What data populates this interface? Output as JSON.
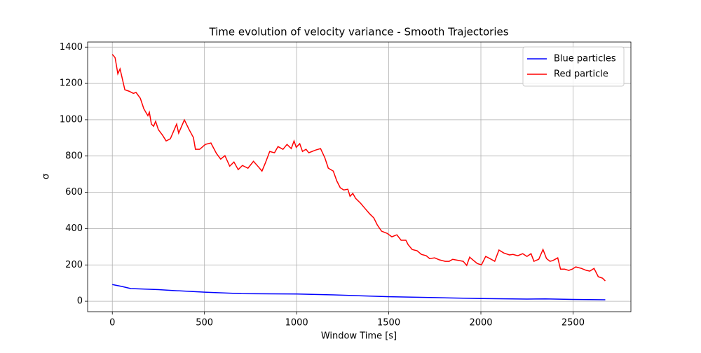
{
  "chart_data": {
    "type": "line",
    "title": "Time evolution of velocity variance - Smooth Trajectories",
    "xlabel": "Window Time [s]",
    "ylabel": "σ",
    "xlim": [
      -134,
      2814
    ],
    "ylim": [
      -57.5,
      1428
    ],
    "xticks": [
      0,
      500,
      1000,
      1500,
      2000,
      2500
    ],
    "yticks": [
      0,
      200,
      400,
      600,
      800,
      1000,
      1200,
      1400
    ],
    "grid": true,
    "legend": "upper right",
    "series": [
      {
        "name": "Blue particles",
        "color": "#0000ff",
        "x": [
          0,
          50,
          100,
          250,
          350,
          500,
          700,
          1000,
          1200,
          1500,
          1750,
          2000,
          2250,
          2350,
          2500,
          2675
        ],
        "values": [
          92,
          82,
          70,
          64,
          58,
          50,
          42,
          40,
          35,
          25,
          20,
          15,
          12,
          13,
          10,
          8
        ]
      },
      {
        "name": "Red particle",
        "color": "#ff0000",
        "x": [
          0,
          15,
          30,
          42,
          68,
          91,
          114,
          129,
          152,
          171,
          193,
          201,
          212,
          224,
          235,
          250,
          273,
          292,
          315,
          349,
          360,
          391,
          417,
          440,
          451,
          474,
          505,
          535,
          565,
          588,
          611,
          637,
          660,
          683,
          706,
          736,
          766,
          793,
          812,
          831,
          854,
          880,
          899,
          926,
          948,
          971,
          986,
          998,
          1017,
          1032,
          1051,
          1066,
          1104,
          1130,
          1153,
          1172,
          1199,
          1218,
          1237,
          1256,
          1278,
          1290,
          1305,
          1320,
          1347,
          1373,
          1396,
          1419,
          1438,
          1461,
          1491,
          1517,
          1544,
          1567,
          1593,
          1605,
          1627,
          1654,
          1677,
          1703,
          1722,
          1749,
          1775,
          1806,
          1828,
          1847,
          1882,
          1904,
          1923,
          1939,
          1961,
          1980,
          2003,
          2026,
          2049,
          2075,
          2098,
          2124,
          2155,
          2174,
          2200,
          2227,
          2250,
          2272,
          2288,
          2314,
          2337,
          2356,
          2375,
          2390,
          2417,
          2432,
          2454,
          2477,
          2496,
          2515,
          2545,
          2572,
          2591,
          2614,
          2637,
          2660,
          2675
        ],
        "values": [
          1360,
          1342,
          1253,
          1280,
          1165,
          1157,
          1145,
          1150,
          1118,
          1060,
          1022,
          1041,
          976,
          964,
          991,
          945,
          914,
          883,
          895,
          976,
          926,
          999,
          945,
          902,
          837,
          837,
          864,
          872,
          814,
          783,
          802,
          744,
          767,
          725,
          748,
          733,
          771,
          740,
          717,
          763,
          825,
          818,
          852,
          837,
          864,
          841,
          883,
          848,
          868,
          825,
          837,
          818,
          833,
          841,
          791,
          733,
          717,
          663,
          625,
          613,
          617,
          578,
          594,
          567,
          540,
          509,
          482,
          459,
          420,
          386,
          374,
          355,
          366,
          336,
          336,
          312,
          285,
          278,
          258,
          251,
          235,
          239,
          228,
          220,
          220,
          231,
          224,
          220,
          197,
          243,
          224,
          208,
          200,
          247,
          235,
          220,
          282,
          266,
          255,
          258,
          251,
          262,
          247,
          262,
          220,
          231,
          285,
          235,
          220,
          224,
          239,
          177,
          177,
          170,
          177,
          189,
          181,
          170,
          166,
          181,
          135,
          127,
          112
        ]
      }
    ]
  }
}
